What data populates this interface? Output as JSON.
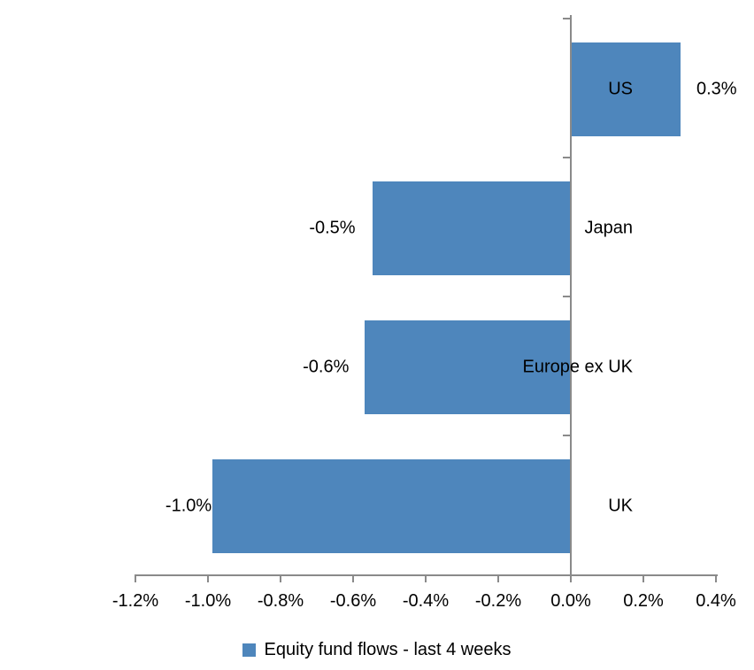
{
  "chart_data": {
    "type": "bar",
    "orientation": "horizontal",
    "title": "",
    "xlabel": "",
    "ylabel": "",
    "categories": [
      "US",
      "Japan",
      "Europe ex UK",
      "UK"
    ],
    "series": [
      {
        "name": "Equity fund flows - last 4 weeks",
        "values": [
          0.3,
          -0.5,
          -0.6,
          -1.0
        ],
        "values_precise": [
          0.3,
          -0.545,
          -0.565,
          -0.985
        ],
        "data_labels": [
          "0.3%",
          "-0.5%",
          "-0.6%",
          "-1.0%"
        ]
      }
    ],
    "xlim": [
      -1.2,
      0.4
    ],
    "x_ticks": [
      {
        "value": -1.2,
        "label": "-1.2%"
      },
      {
        "value": -1.0,
        "label": "-1.0%"
      },
      {
        "value": -0.8,
        "label": "-0.8%"
      },
      {
        "value": -0.6,
        "label": "-0.6%"
      },
      {
        "value": -0.4,
        "label": "-0.4%"
      },
      {
        "value": -0.2,
        "label": "-0.2%"
      },
      {
        "value": 0.0,
        "label": "0.0%"
      },
      {
        "value": 0.2,
        "label": "0.2%"
      },
      {
        "value": 0.4,
        "label": "0.4%"
      }
    ],
    "grid": false,
    "legend": {
      "position": "bottom",
      "items": [
        {
          "label": "Equity fund flows - last 4 weeks",
          "color": "#4E86BC"
        }
      ]
    },
    "colors": {
      "bar": "#4E86BC",
      "axis": "#8A8A8A",
      "text": "#000000",
      "background": "#FFFFFF"
    }
  }
}
